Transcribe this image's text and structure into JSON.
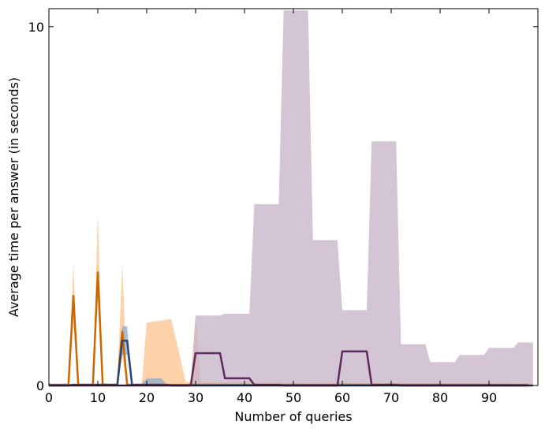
{
  "chart_data": {
    "type": "area",
    "xlabel": "Number of queries",
    "ylabel": "Average time per answer (in seconds)",
    "xlim": [
      0,
      100
    ],
    "ylim": [
      0,
      10.5
    ],
    "xticks": [
      0,
      10,
      20,
      30,
      40,
      50,
      60,
      70,
      80,
      90
    ],
    "yticks": [
      0,
      10
    ],
    "grid": false,
    "series": [
      {
        "color": "#cc6600",
        "band_color": "#fdc28c",
        "x": [
          0,
          1,
          2,
          3,
          4,
          5,
          6,
          7,
          8,
          9,
          10,
          11,
          12,
          13,
          14,
          15,
          16,
          17,
          18,
          19,
          20,
          25,
          28,
          29,
          30,
          31,
          32,
          98
        ],
        "mean": [
          0.02,
          0.02,
          0.02,
          0.02,
          0.02,
          2.5,
          0.02,
          0.02,
          0.02,
          0.02,
          3.15,
          0.02,
          0.02,
          0.02,
          0.02,
          1.5,
          0.02,
          0.02,
          0.02,
          0.02,
          0.02,
          0.02,
          0.02,
          0.02,
          0.02,
          0.02,
          0.02,
          0.02
        ],
        "low": [
          0,
          0,
          0,
          0,
          0,
          1.7,
          0,
          0,
          0,
          0,
          2.4,
          0,
          0,
          0,
          0,
          0.8,
          0,
          0,
          0,
          0,
          0,
          0,
          0,
          0,
          0,
          0,
          0,
          0
        ],
        "high": [
          0.05,
          0.05,
          0.05,
          0.05,
          0.05,
          3.4,
          0.05,
          0.05,
          0.05,
          0.05,
          4.8,
          0.05,
          0.05,
          0.05,
          0.05,
          3.4,
          0.05,
          0.05,
          0.05,
          0.05,
          1.75,
          1.85,
          0.1,
          0.1,
          1.95,
          0.1,
          0.1,
          0.05
        ]
      },
      {
        "color": "#26477a",
        "band_color": "#8ea8cc",
        "x": [
          0,
          1,
          2,
          3,
          4,
          5,
          6,
          7,
          8,
          9,
          10,
          11,
          12,
          13,
          14,
          15,
          16,
          17,
          18,
          19,
          20,
          21,
          22,
          23,
          24,
          25,
          98
        ],
        "mean": [
          0,
          0,
          0,
          0,
          0,
          0.02,
          0.02,
          0.02,
          0.02,
          0.02,
          0.02,
          0.02,
          0.02,
          0.02,
          0.02,
          1.25,
          1.25,
          0.02,
          0.02,
          0.02,
          0.02,
          0.02,
          0.02,
          0.02,
          0.02,
          0,
          0
        ],
        "low": [
          0,
          0,
          0,
          0,
          0,
          0,
          0,
          0,
          0,
          0,
          0,
          0,
          0,
          0,
          0,
          0.85,
          0.85,
          0,
          0,
          0,
          0,
          0,
          0,
          0,
          0,
          0,
          0
        ],
        "high": [
          0.05,
          0.05,
          0.05,
          0.05,
          0.05,
          0.05,
          0.05,
          0.05,
          0.05,
          0.05,
          0.05,
          0.05,
          0.05,
          0.05,
          0.05,
          1.65,
          1.65,
          0.05,
          0.05,
          0.05,
          0.2,
          0.2,
          0.2,
          0.2,
          0.05,
          0,
          0
        ]
      },
      {
        "color": "#5e2a5e",
        "band_color": "#c4b1c6",
        "x": [
          0,
          29,
          30,
          35,
          36,
          41,
          42,
          47,
          48,
          53,
          54,
          59,
          60,
          65,
          66,
          71,
          72,
          77,
          78,
          83,
          84,
          89,
          90,
          95,
          96,
          99
        ],
        "mean": [
          0,
          0,
          0.9,
          0.9,
          0.2,
          0.2,
          0.02,
          0.02,
          0,
          0,
          0,
          0,
          0.95,
          0.95,
          0.02,
          0.02,
          0,
          0,
          0,
          0,
          0,
          0,
          0,
          0,
          0,
          0
        ],
        "low": [
          0,
          0,
          0,
          0,
          0,
          0,
          0,
          0,
          0,
          0,
          0,
          0,
          0,
          0,
          0,
          0,
          0,
          0,
          0,
          0,
          0,
          0,
          0,
          0,
          0,
          0
        ],
        "high": [
          0,
          0,
          1.95,
          1.95,
          2.0,
          2.0,
          5.05,
          5.05,
          10.45,
          10.45,
          4.05,
          4.05,
          2.1,
          2.1,
          6.8,
          6.8,
          1.15,
          1.15,
          0.65,
          0.65,
          0.85,
          0.85,
          1.05,
          1.05,
          1.2,
          1.2
        ]
      }
    ]
  }
}
